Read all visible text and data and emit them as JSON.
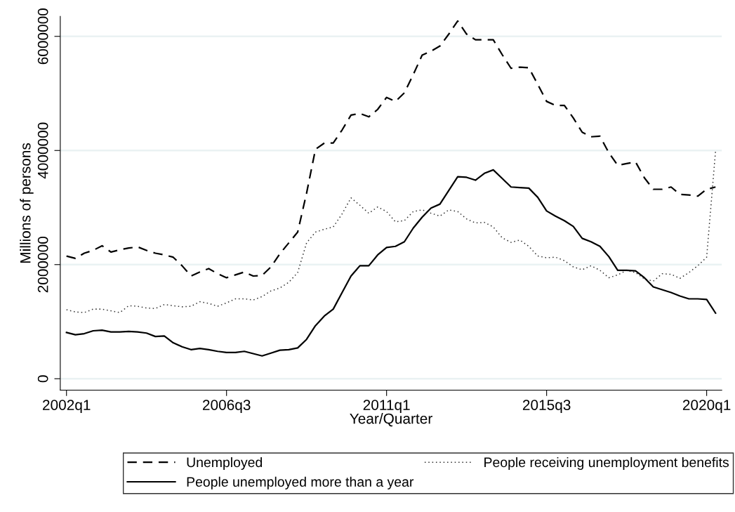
{
  "chart_data": {
    "type": "line",
    "xlabel": "Year/Quarter",
    "ylabel": "Millions of persons",
    "categories": [
      "2002q1",
      null,
      null,
      null,
      null,
      null,
      null,
      null,
      null,
      null,
      null,
      null,
      null,
      null,
      null,
      null,
      null,
      null,
      "2006q3",
      null,
      null,
      null,
      null,
      null,
      null,
      null,
      null,
      null,
      null,
      null,
      null,
      null,
      null,
      null,
      null,
      null,
      "2011q1",
      null,
      null,
      null,
      null,
      null,
      null,
      null,
      null,
      null,
      null,
      null,
      null,
      null,
      null,
      null,
      null,
      null,
      "2015q3",
      null,
      null,
      null,
      null,
      null,
      null,
      null,
      null,
      null,
      null,
      null,
      null,
      null,
      null,
      null,
      null,
      null,
      "2020q1",
      null
    ],
    "series": [
      {
        "name": "Unemployed",
        "color": "#000000",
        "line_style": "dashed",
        "values": [
          2150000,
          2110000,
          2200000,
          2250000,
          2330000,
          2220000,
          2260000,
          2290000,
          2310000,
          2250000,
          2200000,
          2170000,
          2130000,
          1980000,
          1800000,
          1870000,
          1930000,
          1840000,
          1770000,
          1820000,
          1870000,
          1800000,
          1810000,
          1960000,
          2190000,
          2380000,
          2570000,
          3250000,
          4020000,
          4130000,
          4130000,
          4360000,
          4620000,
          4650000,
          4590000,
          4720000,
          4930000,
          4860000,
          5010000,
          5330000,
          5670000,
          5740000,
          5830000,
          6040000,
          6270000,
          6040000,
          5940000,
          5940000,
          5940000,
          5680000,
          5440000,
          5460000,
          5450000,
          5160000,
          4860000,
          4790000,
          4790000,
          4570000,
          4320000,
          4240000,
          4250000,
          3960000,
          3740000,
          3770000,
          3800000,
          3520000,
          3320000,
          3320000,
          3360000,
          3230000,
          3220000,
          3200000,
          3320000,
          3360000
        ]
      },
      {
        "name": "People receiving unemployment benefits",
        "color": "#333333",
        "line_style": "dotted",
        "values": [
          1210000,
          1170000,
          1160000,
          1220000,
          1220000,
          1190000,
          1160000,
          1280000,
          1270000,
          1240000,
          1230000,
          1300000,
          1280000,
          1260000,
          1270000,
          1350000,
          1320000,
          1270000,
          1330000,
          1400000,
          1400000,
          1380000,
          1440000,
          1540000,
          1590000,
          1690000,
          1860000,
          2380000,
          2570000,
          2620000,
          2660000,
          2890000,
          3170000,
          3040000,
          2900000,
          3010000,
          2930000,
          2750000,
          2770000,
          2930000,
          2960000,
          2900000,
          2850000,
          2960000,
          2930000,
          2800000,
          2730000,
          2740000,
          2660000,
          2470000,
          2390000,
          2430000,
          2320000,
          2150000,
          2120000,
          2130000,
          2070000,
          1960000,
          1910000,
          1980000,
          1900000,
          1770000,
          1820000,
          1900000,
          1860000,
          1750000,
          1710000,
          1840000,
          1830000,
          1760000,
          1860000,
          1980000,
          2130000,
          3990000
        ]
      },
      {
        "name": "People unemployed more than a year",
        "color": "#000000",
        "line_style": "solid",
        "values": [
          810000,
          770000,
          790000,
          840000,
          850000,
          820000,
          820000,
          830000,
          820000,
          800000,
          740000,
          750000,
          630000,
          560000,
          510000,
          530000,
          510000,
          480000,
          460000,
          460000,
          480000,
          440000,
          400000,
          450000,
          500000,
          510000,
          540000,
          690000,
          930000,
          1100000,
          1220000,
          1510000,
          1800000,
          1980000,
          1980000,
          2170000,
          2300000,
          2320000,
          2400000,
          2640000,
          2830000,
          2990000,
          3060000,
          3300000,
          3540000,
          3530000,
          3480000,
          3600000,
          3660000,
          3510000,
          3360000,
          3350000,
          3340000,
          3180000,
          2940000,
          2850000,
          2770000,
          2670000,
          2460000,
          2400000,
          2320000,
          2140000,
          1900000,
          1900000,
          1890000,
          1770000,
          1610000,
          1560000,
          1510000,
          1450000,
          1400000,
          1400000,
          1390000,
          1150000
        ]
      }
    ],
    "ylim": [
      -200000,
      6350000
    ],
    "yticks": [
      0,
      2000000,
      4000000,
      6000000
    ],
    "grid": "y",
    "legend": "bottom"
  }
}
